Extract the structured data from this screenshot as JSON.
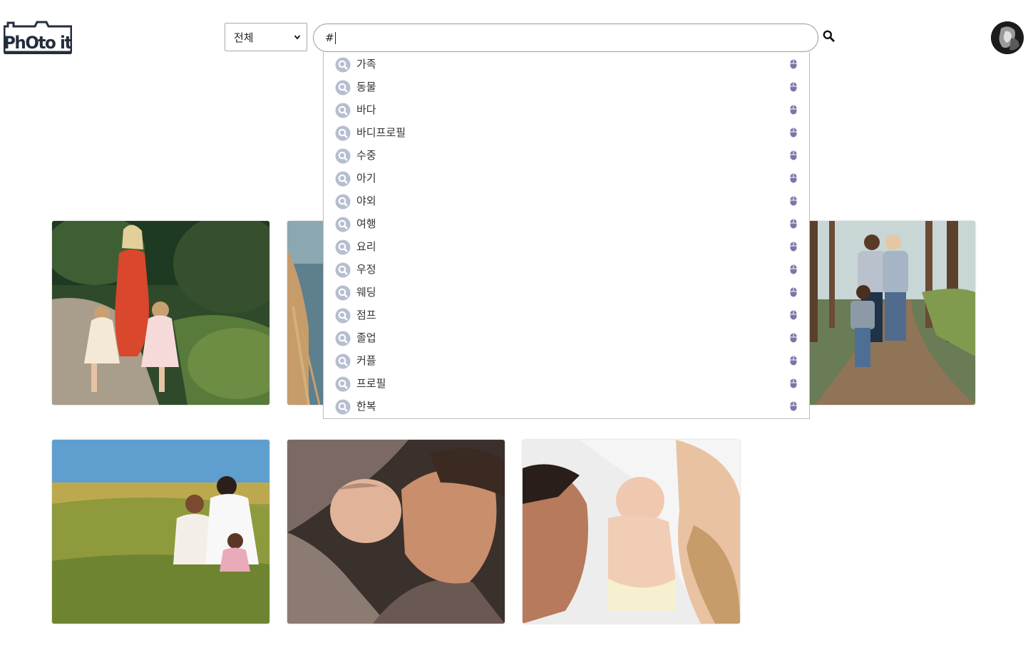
{
  "header": {
    "logo_text": "PhOto it",
    "category_select": {
      "selected": "전체"
    },
    "search": {
      "value": "#"
    }
  },
  "autocomplete": {
    "items": [
      {
        "label": "가족"
      },
      {
        "label": "동물"
      },
      {
        "label": "바다"
      },
      {
        "label": "바디프로필"
      },
      {
        "label": "수중"
      },
      {
        "label": "아기"
      },
      {
        "label": "야외"
      },
      {
        "label": "여행"
      },
      {
        "label": "요리"
      },
      {
        "label": "우정"
      },
      {
        "label": "웨딩"
      },
      {
        "label": "점프"
      },
      {
        "label": "졸업"
      },
      {
        "label": "커플"
      },
      {
        "label": "프로필"
      },
      {
        "label": "한복"
      }
    ],
    "item_icon": "search-circle-icon",
    "trailing_icon": "mouse-icon"
  },
  "gallery": {
    "photos": [
      {
        "subject": "mother-daughters-forest"
      },
      {
        "subject": "woman-beach-grass"
      },
      {
        "subject": "family-forest-path"
      },
      {
        "subject": "family-meadow"
      },
      {
        "subject": "father-sleeping-baby"
      },
      {
        "subject": "parents-newborn"
      }
    ]
  },
  "colors": {
    "search_icon_bg": "#b6bfcf",
    "mouse_icon": "#7a76a8",
    "text": "#333333",
    "logo": "#232e3d"
  }
}
